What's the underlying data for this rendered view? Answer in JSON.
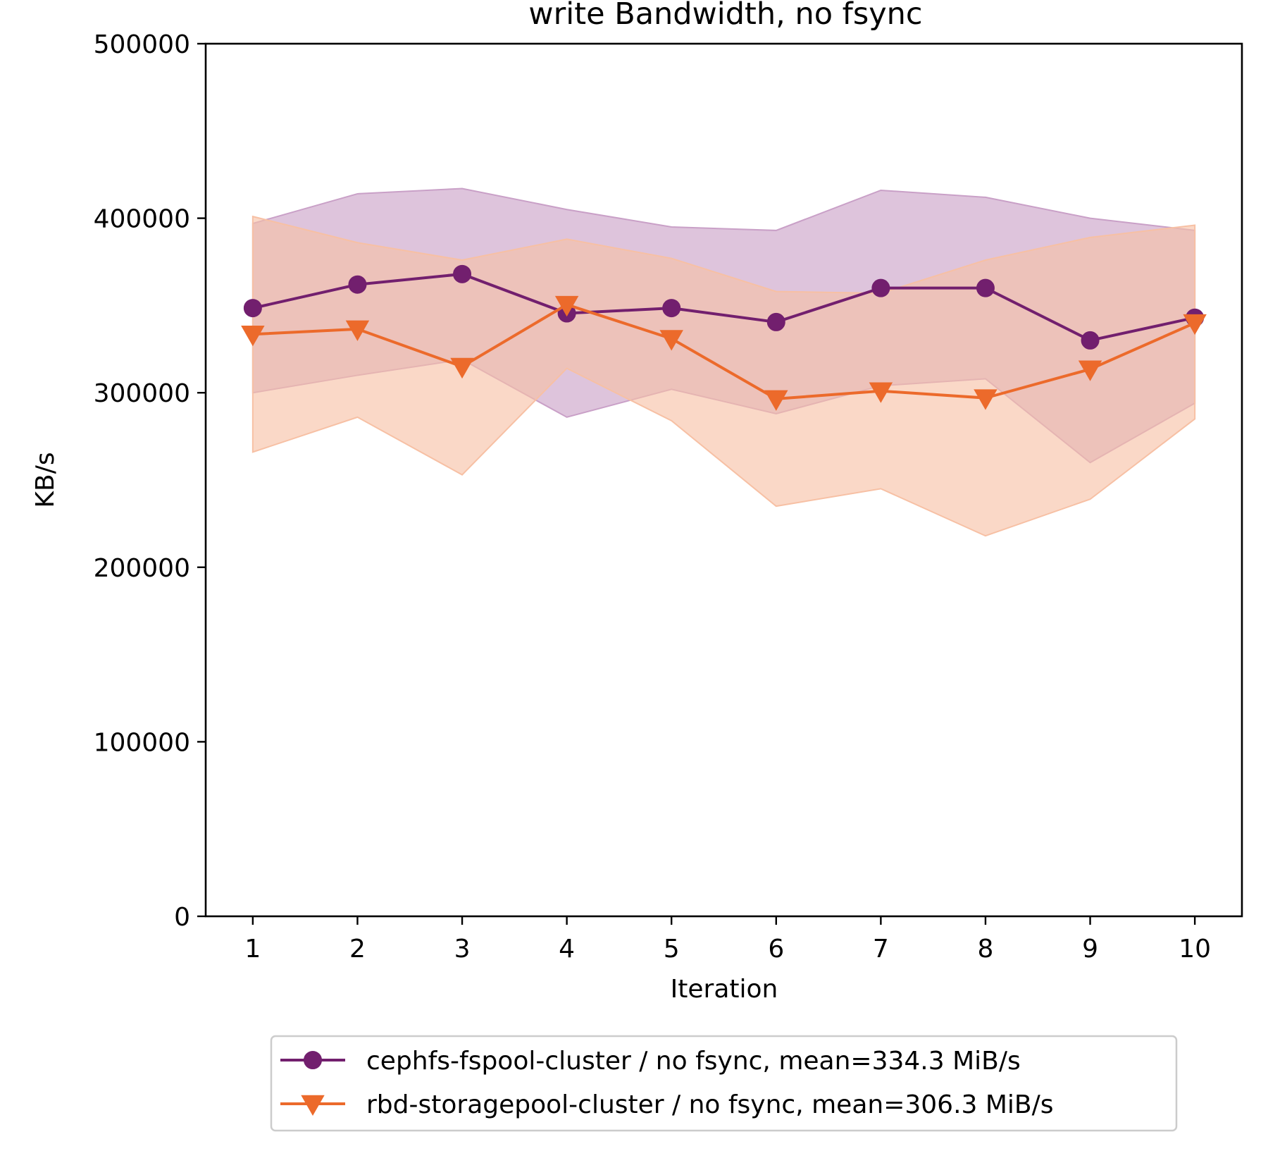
{
  "chart_data": {
    "type": "line",
    "title": "write Bandwidth, no fsync",
    "xlabel": "Iteration",
    "ylabel": "KB/s",
    "ylim": [
      0,
      500000
    ],
    "xlim": [
      0.55,
      10.45
    ],
    "x": [
      1,
      2,
      3,
      4,
      5,
      6,
      7,
      8,
      9,
      10
    ],
    "y_ticks": [
      0,
      100000,
      200000,
      300000,
      400000,
      500000
    ],
    "y_tick_labels": [
      "0",
      "100000",
      "200000",
      "300000",
      "400000",
      "500000"
    ],
    "x_ticks": [
      1,
      2,
      3,
      4,
      5,
      6,
      7,
      8,
      9,
      10
    ],
    "x_tick_labels": [
      "1",
      "2",
      "3",
      "4",
      "5",
      "6",
      "7",
      "8",
      "9",
      "10"
    ],
    "grid": false,
    "legend_position": "below",
    "series": [
      {
        "name": "cephfs-fspool-cluster / no fsync, mean=334.3 MiB/s",
        "color": "#721f6e",
        "band_color": "#c9a0c7",
        "marker": "circle",
        "values": [
          348500,
          362000,
          368000,
          345500,
          348500,
          340500,
          360000,
          360000,
          330000,
          343000
        ],
        "band_upper": [
          397000,
          414000,
          417000,
          405000,
          395000,
          393000,
          416000,
          412000,
          400000,
          393000
        ],
        "band_lower": [
          300000,
          310000,
          319000,
          286000,
          302000,
          288000,
          304000,
          308000,
          260000,
          294000
        ]
      },
      {
        "name": "rbd-storagepool-cluster / no fsync, mean=306.3 MiB/s",
        "color": "#ec6a2b",
        "band_color": "#f7c0a4",
        "marker": "triangle-down",
        "values": [
          333500,
          336500,
          315000,
          350500,
          331000,
          296500,
          301000,
          297000,
          313500,
          340000
        ],
        "band_upper": [
          401000,
          386000,
          376000,
          388000,
          377000,
          358000,
          357000,
          376000,
          389000,
          396000
        ],
        "band_lower": [
          266000,
          286000,
          253000,
          314000,
          284000,
          235000,
          245000,
          218000,
          239000,
          285000
        ]
      }
    ]
  }
}
